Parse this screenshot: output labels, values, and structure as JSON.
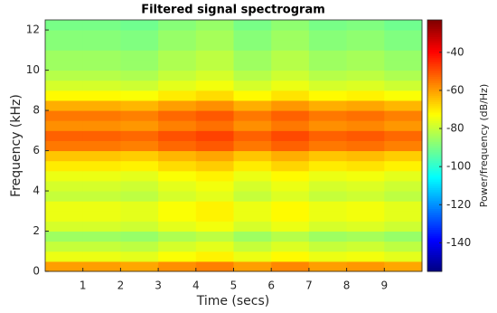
{
  "chart_data": {
    "type": "heatmap",
    "title": "Filtered signal spectrogram",
    "xlabel": "Time (secs)",
    "ylabel": "Frequency (kHz)",
    "colorbar_label": "Power/frequency (dB/Hz)",
    "colormap": "jet",
    "x": [
      0.5,
      1.5,
      2.5,
      3.5,
      4.5,
      5.5,
      6.5,
      7.5,
      8.5,
      9.5
    ],
    "y": [
      0.25,
      0.75,
      1.25,
      1.75,
      2.25,
      2.75,
      3.25,
      3.75,
      4.25,
      4.75,
      5.25,
      5.75,
      6.25,
      6.75,
      7.25,
      7.75,
      8.25,
      8.75,
      9.25,
      9.75,
      10.25,
      10.75,
      11.25,
      11.75,
      12.25
    ],
    "z": [
      [
        -60,
        -60,
        -61,
        -58,
        -56,
        -60,
        -57,
        -60,
        -59,
        -61
      ],
      [
        -75,
        -75,
        -76,
        -73,
        -71,
        -75,
        -72,
        -75,
        -74,
        -76
      ],
      [
        -80,
        -80,
        -81,
        -78,
        -76,
        -80,
        -77,
        -80,
        -79,
        -81
      ],
      [
        -85,
        -85,
        -86,
        -83,
        -81,
        -85,
        -82,
        -85,
        -84,
        -86
      ],
      [
        -78,
        -78,
        -79,
        -76,
        -74,
        -78,
        -75,
        -78,
        -77,
        -79
      ],
      [
        -75,
        -75,
        -76,
        -73,
        -71,
        -75,
        -72,
        -75,
        -74,
        -76
      ],
      [
        -75,
        -75,
        -76,
        -73,
        -71,
        -75,
        -72,
        -75,
        -74,
        -76
      ],
      [
        -80,
        -80,
        -81,
        -78,
        -76,
        -80,
        -77,
        -80,
        -79,
        -81
      ],
      [
        -78,
        -78,
        -79,
        -76,
        -74,
        -78,
        -75,
        -78,
        -77,
        -79
      ],
      [
        -75,
        -75,
        -76,
        -73,
        -71,
        -75,
        -72,
        -75,
        -74,
        -76
      ],
      [
        -70,
        -70,
        -71,
        -68,
        -66,
        -70,
        -67,
        -70,
        -69,
        -71
      ],
      [
        -65,
        -65,
        -66,
        -63,
        -61,
        -65,
        -62,
        -65,
        -64,
        -66
      ],
      [
        -55,
        -55,
        -56,
        -53,
        -51,
        -55,
        -52,
        -55,
        -54,
        -56
      ],
      [
        -52,
        -52,
        -53,
        -50,
        -48,
        -52,
        -49,
        -52,
        -51,
        -53
      ],
      [
        -58,
        -58,
        -59,
        -56,
        -54,
        -58,
        -55,
        -58,
        -57,
        -59
      ],
      [
        -55,
        -55,
        -56,
        -53,
        -51,
        -55,
        -52,
        -55,
        -54,
        -56
      ],
      [
        -62,
        -62,
        -63,
        -60,
        -58,
        -62,
        -59,
        -62,
        -61,
        -63
      ],
      [
        -72,
        -72,
        -73,
        -70,
        -68,
        -72,
        -69,
        -72,
        -71,
        -73
      ],
      [
        -78,
        -78,
        -79,
        -76,
        -74,
        -78,
        -75,
        -78,
        -77,
        -79
      ],
      [
        -82,
        -82,
        -83,
        -80,
        -78,
        -82,
        -79,
        -82,
        -81,
        -83
      ],
      [
        -85,
        -85,
        -86,
        -83,
        -81,
        -85,
        -82,
        -85,
        -84,
        -86
      ],
      [
        -85,
        -85,
        -86,
        -83,
        -81,
        -85,
        -82,
        -85,
        -84,
        -86
      ],
      [
        -88,
        -88,
        -89,
        -86,
        -84,
        -88,
        -85,
        -88,
        -87,
        -89
      ],
      [
        -88,
        -88,
        -89,
        -86,
        -84,
        -88,
        -85,
        -88,
        -87,
        -89
      ],
      [
        -90,
        -90,
        -91,
        -88,
        -86,
        -90,
        -87,
        -90,
        -89,
        -91
      ]
    ],
    "xlim": [
      0,
      10
    ],
    "xticks": [
      1,
      2,
      3,
      4,
      5,
      6,
      7,
      8,
      9
    ],
    "ylim": [
      0,
      12.5
    ],
    "yticks": [
      0,
      2,
      4,
      6,
      8,
      10,
      12
    ],
    "zlim": [
      -155,
      -23
    ],
    "zticks": [
      -140,
      -120,
      -100,
      -80,
      -60,
      -40
    ]
  }
}
